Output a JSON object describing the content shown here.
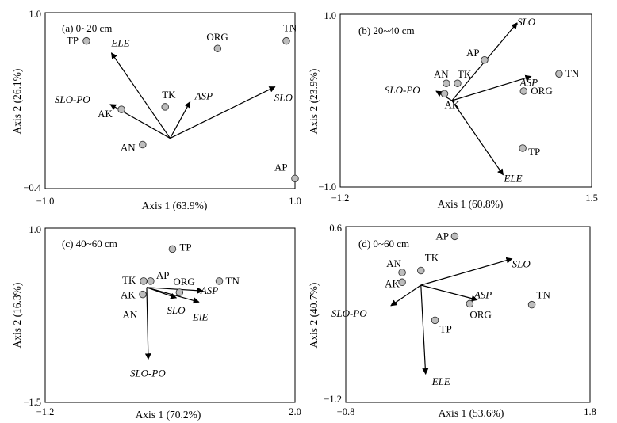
{
  "chart_data": [
    {
      "type": "scatter",
      "panel_label": "(a) 0~20 cm",
      "xlabel": "Axis 1 (63.9%)",
      "ylabel": "Axis 2 (26.1%)",
      "xlim": [
        -1.0,
        1.0
      ],
      "ylim": [
        -0.4,
        1.0
      ],
      "xticks": [
        "−1.0",
        "1.0"
      ],
      "yticks": [
        "−0.4",
        "1.0"
      ],
      "points": [
        {
          "name": "TP",
          "x": -0.67,
          "y": 0.775
        },
        {
          "name": "ORG",
          "x": 0.38,
          "y": 0.715
        },
        {
          "name": "TN",
          "x": 0.93,
          "y": 0.775
        },
        {
          "name": "TK",
          "x": -0.04,
          "y": 0.25
        },
        {
          "name": "AK",
          "x": -0.39,
          "y": 0.23
        },
        {
          "name": "AN",
          "x": -0.22,
          "y": -0.05
        },
        {
          "name": "AP",
          "x": 1.0,
          "y": -0.32
        }
      ],
      "vectors": [
        {
          "name": "ELE",
          "x": -0.47,
          "y": 0.68
        },
        {
          "name": "SLO-PO",
          "x": -0.48,
          "y": 0.27
        },
        {
          "name": "ASP",
          "x": 0.16,
          "y": 0.29
        },
        {
          "name": "SLO",
          "x": 0.84,
          "y": 0.41
        }
      ]
    },
    {
      "type": "scatter",
      "panel_label": "(b) 20~40 cm",
      "xlabel": "Axis 1 (60.8%)",
      "ylabel": "Axis 2 (23.9%)",
      "xlim": [
        -1.2,
        1.5
      ],
      "ylim": [
        -1.0,
        1.0
      ],
      "xticks": [
        "−1.2",
        "1.5"
      ],
      "yticks": [
        "−1.0",
        "1.0"
      ],
      "points": [
        {
          "name": "AP",
          "x": 0.35,
          "y": 0.47
        },
        {
          "name": "AN",
          "x": -0.06,
          "y": 0.2
        },
        {
          "name": "TK",
          "x": 0.06,
          "y": 0.2
        },
        {
          "name": "TN",
          "x": 1.15,
          "y": 0.31
        },
        {
          "name": "ORG",
          "x": 0.77,
          "y": 0.11
        },
        {
          "name": "AK",
          "x": -0.08,
          "y": 0.08
        },
        {
          "name": "TP",
          "x": 0.76,
          "y": -0.55
        }
      ],
      "vectors": [
        {
          "name": "SLO",
          "x": 0.7,
          "y": 0.9
        },
        {
          "name": "ASP",
          "x": 0.85,
          "y": 0.28
        },
        {
          "name": "SLO-PO",
          "x": -0.17,
          "y": 0.11
        },
        {
          "name": "ELE",
          "x": 0.55,
          "y": -0.86
        }
      ]
    },
    {
      "type": "scatter",
      "panel_label": "(c) 40~60 cm",
      "xlabel": "Axis 1 (70.2%)",
      "ylabel": "Axis 2 (16.3%)",
      "xlim": [
        -1.2,
        2.0
      ],
      "ylim": [
        -1.5,
        1.0
      ],
      "xticks": [
        "−1.2",
        "2.0"
      ],
      "yticks": [
        "−1.5",
        "1.0"
      ],
      "points": [
        {
          "name": "TP",
          "x": 0.43,
          "y": 0.7
        },
        {
          "name": "TK",
          "x": 0.06,
          "y": 0.24
        },
        {
          "name": "AP",
          "x": 0.15,
          "y": 0.24
        },
        {
          "name": "TN",
          "x": 1.03,
          "y": 0.24
        },
        {
          "name": "ORG",
          "x": 0.52,
          "y": 0.08
        },
        {
          "name": "AK",
          "x": 0.05,
          "y": 0.05
        }
      ],
      "vectors": [
        {
          "name": "ASP",
          "x": 0.82,
          "y": 0.1
        },
        {
          "name": "SLO",
          "x": 0.48,
          "y": 0.0
        },
        {
          "name": "ElE",
          "x": 0.77,
          "y": -0.06
        },
        {
          "name": "SLO-PO",
          "x": 0.12,
          "y": -0.88
        }
      ],
      "vector_origin": {
        "x": 0.1,
        "y": 0.15
      },
      "extra_labels": [
        {
          "name": "AN",
          "x": -0.02,
          "y": -0.11
        }
      ]
    },
    {
      "type": "scatter",
      "panel_label": "(d) 0~60 cm",
      "xlabel": "Axis 1 (53.6%)",
      "ylabel": "Axis 2 (40.7%)",
      "xlim": [
        -0.8,
        1.8
      ],
      "ylim": [
        -1.2,
        0.6
      ],
      "xticks": [
        "−0.8",
        "1.8"
      ],
      "yticks": [
        "−1.2",
        "0.6"
      ],
      "points": [
        {
          "name": "AP",
          "x": 0.36,
          "y": 0.5
        },
        {
          "name": "TK",
          "x": 0.0,
          "y": 0.15
        },
        {
          "name": "AN",
          "x": -0.2,
          "y": 0.13
        },
        {
          "name": "AK",
          "x": -0.2,
          "y": 0.03
        },
        {
          "name": "TN",
          "x": 1.18,
          "y": -0.2
        },
        {
          "name": "ORG",
          "x": 0.52,
          "y": -0.19
        },
        {
          "name": "TP",
          "x": 0.15,
          "y": -0.36
        }
      ],
      "vectors": [
        {
          "name": "SLO",
          "x": 0.97,
          "y": 0.27
        },
        {
          "name": "ASP",
          "x": 0.6,
          "y": -0.15
        },
        {
          "name": "SLO-PO",
          "x": -0.32,
          "y": -0.21
        },
        {
          "name": "ELE",
          "x": 0.05,
          "y": -0.91
        }
      ]
    }
  ]
}
